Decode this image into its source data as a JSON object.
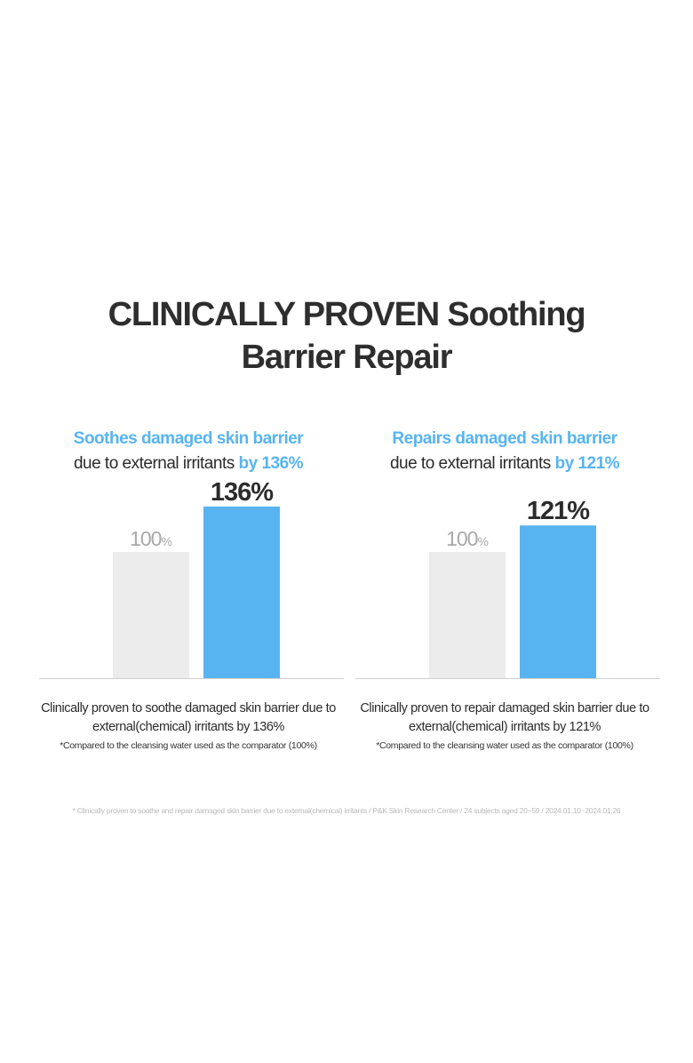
{
  "title": {
    "line1": "CLINICALLY PROVEN Soothing",
    "line2": "Barrier Repair"
  },
  "colors": {
    "accent": "#58b4f0",
    "comparator_bar": "#ececec",
    "comparator_label": "#a9a9a9",
    "text": "#2b2b2b",
    "baseline": "#cfcfcf"
  },
  "panels": [
    {
      "headline_accent": "Soothes damaged skin barrier",
      "headline_line2": "due to external irritants ",
      "headline_by": "by 136%",
      "caption_line1": "Clinically proven to soothe damaged skin barrier due to",
      "caption_line2": "external(chemical) irritants by 136%",
      "note": "*Compared to the cleansing water used as the comparator (100%)"
    },
    {
      "headline_accent": "Repairs damaged skin barrier",
      "headline_line2": "due to external irritants ",
      "headline_by": "by 121%",
      "caption_line1": "Clinically proven to repair damaged skin barrier due to",
      "caption_line2": "external(chemical) irritants by 121%",
      "note": "*Compared to the cleansing water used as the comparator (100%)"
    }
  ],
  "chart_data": [
    {
      "type": "bar",
      "categories": [
        "",
        ""
      ],
      "values": [
        100,
        136
      ],
      "value_labels": [
        "100",
        "136%"
      ],
      "value_label_units": [
        "%",
        ""
      ],
      "ylim": [
        0,
        150
      ],
      "grid": false
    },
    {
      "type": "bar",
      "categories": [
        "",
        ""
      ],
      "values": [
        100,
        121
      ],
      "value_labels": [
        "100",
        "121%"
      ],
      "value_label_units": [
        "%",
        ""
      ],
      "ylim": [
        0,
        150
      ],
      "grid": false
    }
  ],
  "footnote": "* Clinically proven to soothe and repair damaged skin barrier due to external(chemical) irritants / P&K Skin Research Center  / 24 subjects aged 20~59 / 2024.01.10~2024.01.26"
}
